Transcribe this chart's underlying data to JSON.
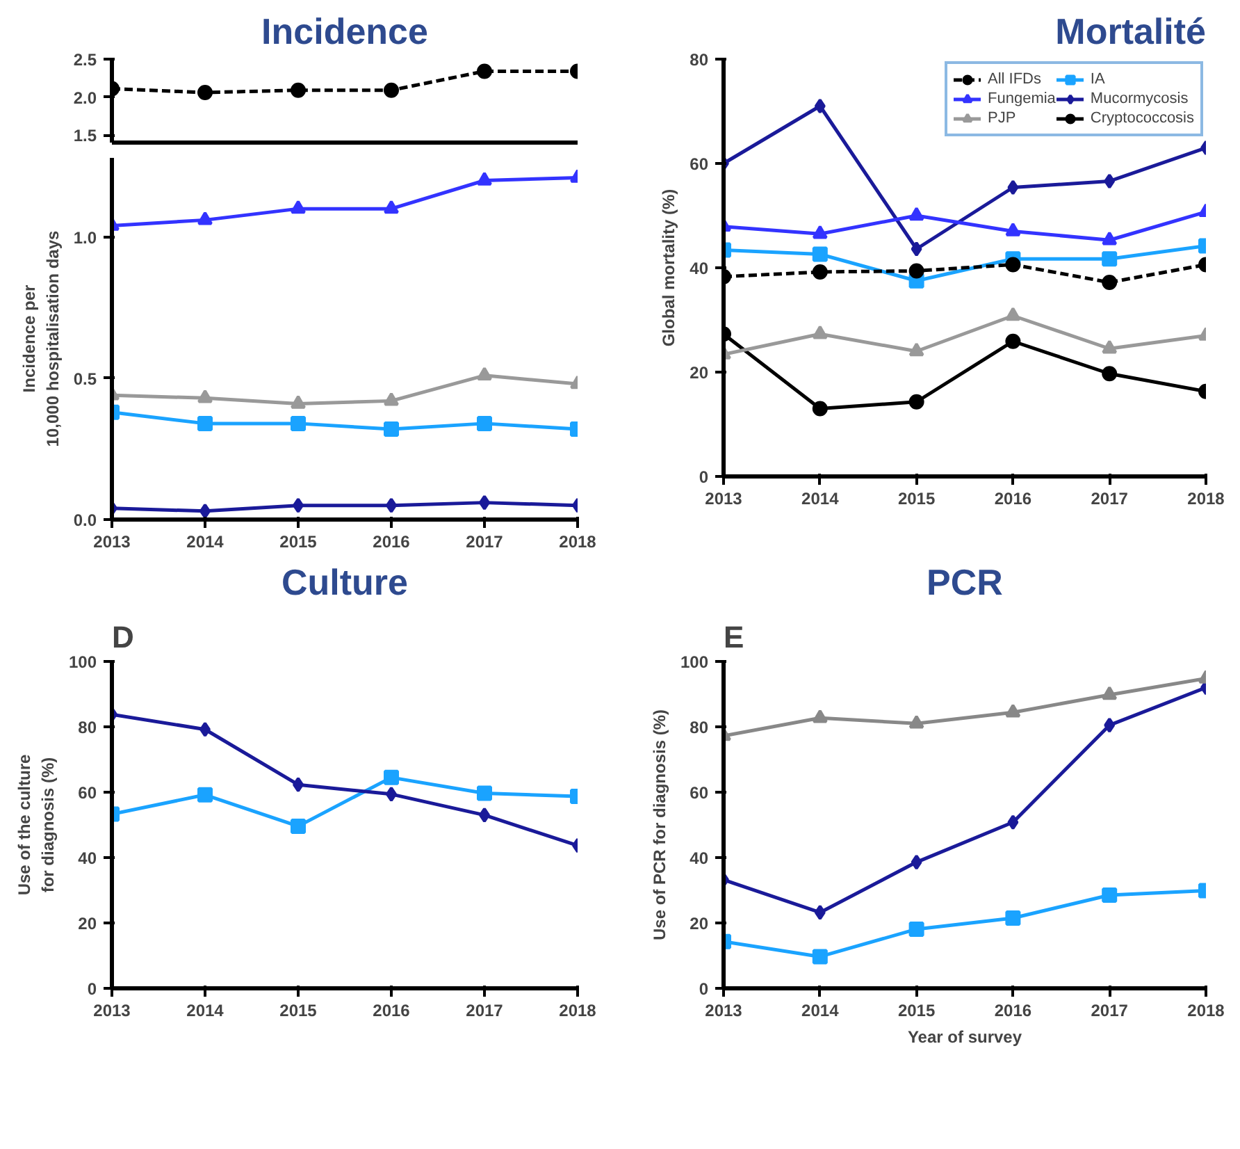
{
  "chart_data": [
    {
      "type": "line",
      "title": "Incidence",
      "x": [
        2013,
        2014,
        2015,
        2016,
        2017,
        2018
      ],
      "xlim": [
        2013,
        2018
      ],
      "xticks": [
        2013,
        2014,
        2015,
        2016,
        2017,
        2018
      ],
      "ylim": [
        1.4,
        2.5
      ],
      "yticks": [
        {
          "value": 1.5,
          "label": "1.5"
        },
        {
          "value": 2.0,
          "label": "2.0"
        },
        {
          "value": 2.5,
          "label": "2.5"
        }
      ],
      "tick_labels": "y",
      "grid": false,
      "series": [
        {
          "color": "#000000",
          "marker": "circle",
          "line_style": "dashed",
          "values": [
            2.11,
            2.06,
            2.09,
            2.09,
            2.34,
            2.34
          ]
        }
      ]
    },
    {
      "type": "line",
      "ylabel": "Incidence per\n10,000 hospitalisation days",
      "x": [
        2013,
        2014,
        2015,
        2016,
        2017,
        2018
      ],
      "xlim": [
        2013,
        2018
      ],
      "xticks": [
        2013,
        2014,
        2015,
        2016,
        2017,
        2018
      ],
      "ylim": [
        0,
        1.28
      ],
      "yticks": [
        {
          "value": 0,
          "label": "0.0"
        },
        {
          "value": 0.5,
          "label": "0.5"
        },
        {
          "value": 1.0,
          "label": "1.0"
        }
      ],
      "grid": false,
      "series": [
        {
          "color": "#3333ff",
          "marker": "triangle",
          "values": [
            1.04,
            1.06,
            1.1,
            1.1,
            1.2,
            1.21
          ]
        },
        {
          "color": "#999999",
          "marker": "triangle",
          "values": [
            0.44,
            0.43,
            0.41,
            0.42,
            0.51,
            0.48
          ]
        },
        {
          "color": "#1aa3ff",
          "marker": "square",
          "values": [
            0.38,
            0.34,
            0.34,
            0.32,
            0.34,
            0.32
          ]
        },
        {
          "color": "#1a1a99",
          "marker": "diamond",
          "values": [
            0.04,
            0.03,
            0.05,
            0.05,
            0.06,
            0.05
          ]
        }
      ]
    },
    {
      "type": "line",
      "title": "Mortalité",
      "ylabel": "Global mortality (%)",
      "x": [
        2013,
        2014,
        2015,
        2016,
        2017,
        2018
      ],
      "xlim": [
        2013,
        2018
      ],
      "xticks": [
        2013,
        2014,
        2015,
        2016,
        2017,
        2018
      ],
      "ylim": [
        0,
        80
      ],
      "yticks": [
        0,
        20,
        40,
        60,
        80
      ],
      "grid": false,
      "legend": "top right",
      "series": [
        {
          "name": "All IFDs",
          "color": "#000000",
          "marker": "circle",
          "line_style": "dashed",
          "values": [
            38.3,
            39.2,
            39.4,
            40.6,
            37.2,
            40.6
          ]
        },
        {
          "name": "Fungemia",
          "color": "#3333ff",
          "marker": "triangle",
          "values": [
            47.9,
            46.5,
            50,
            47,
            45.3,
            50.7
          ]
        },
        {
          "name": "PJP",
          "color": "#999999",
          "marker": "triangle",
          "values": [
            23.4,
            27.3,
            24,
            30.8,
            24.5,
            27
          ]
        },
        {
          "name": "IA",
          "color": "#1aa3ff",
          "marker": "square",
          "values": [
            43.4,
            42.6,
            37.5,
            41.7,
            41.7,
            44.2
          ]
        },
        {
          "name": "Mucormycosis",
          "color": "#1a1a99",
          "marker": "diamond",
          "values": [
            60,
            71,
            43.6,
            55.4,
            56.6,
            63
          ]
        },
        {
          "name": "Cryptococcosis",
          "color": "#000000",
          "marker": "circle",
          "values": [
            27.3,
            13,
            14.3,
            25.9,
            19.7,
            16.3
          ]
        }
      ]
    },
    {
      "type": "line",
      "title": "Culture",
      "annotations": [
        "D"
      ],
      "ylabel": "Use of the culture\nfor diagnosis (%)",
      "x": [
        2013,
        2014,
        2015,
        2016,
        2017,
        2018
      ],
      "xlim": [
        2013,
        2018
      ],
      "xticks": [
        2013,
        2014,
        2015,
        2016,
        2017,
        2018
      ],
      "ylim": [
        0,
        100
      ],
      "yticks": [
        0,
        20,
        40,
        60,
        80,
        100
      ],
      "grid": false,
      "series": [
        {
          "color": "#1a1a99",
          "marker": "diamond",
          "values": [
            83.8,
            79.2,
            62.3,
            59.4,
            53,
            43.7
          ]
        },
        {
          "color": "#1aa3ff",
          "marker": "square",
          "values": [
            53.3,
            59.2,
            49.6,
            64.5,
            59.7,
            58.7
          ]
        }
      ]
    },
    {
      "type": "line",
      "title": "PCR",
      "annotations": [
        "E"
      ],
      "xlabel": "Year of survey",
      "ylabel": "Use of PCR for diagnosis (%)",
      "x": [
        2013,
        2014,
        2015,
        2016,
        2017,
        2018
      ],
      "xlim": [
        2013,
        2018
      ],
      "xticks": [
        2013,
        2014,
        2015,
        2016,
        2017,
        2018
      ],
      "ylim": [
        0,
        100
      ],
      "yticks": [
        0,
        20,
        40,
        60,
        80,
        100
      ],
      "grid": false,
      "series": [
        {
          "color": "#888888",
          "marker": "triangle",
          "values": [
            77.2,
            82.7,
            81,
            84.4,
            89.8,
            94.8
          ]
        },
        {
          "color": "#1a1a99",
          "marker": "diamond",
          "values": [
            33.2,
            23.2,
            38.6,
            50.8,
            80.5,
            92
          ]
        },
        {
          "color": "#1aa3ff",
          "marker": "square",
          "values": [
            14.3,
            9.7,
            18.1,
            21.5,
            28.5,
            29.9
          ]
        }
      ]
    }
  ]
}
